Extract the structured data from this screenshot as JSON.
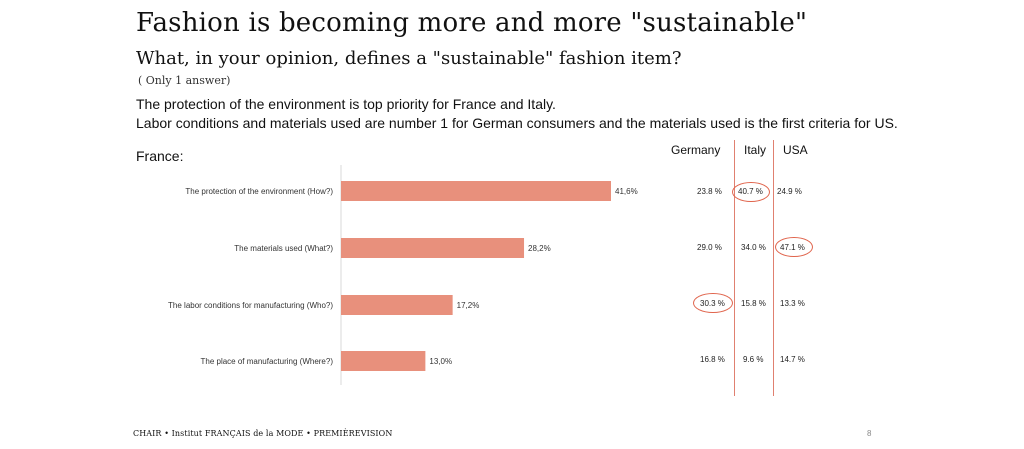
{
  "header": {
    "title": "Fashion is becoming more and more \"sustainable\"",
    "subtitle": "What, in your opinion, defines a \"sustainable\" fashion item?",
    "note": "( Only 1 answer)",
    "insight_line1": "The protection of the environment is top priority for France and Italy.",
    "insight_line2": "Labor conditions and materials used are number 1 for German consumers and the materials used is the first criteria for US."
  },
  "chart_data": {
    "type": "bar",
    "orientation": "horizontal",
    "title": "France:",
    "categories": [
      "The protection of the environment (How?)",
      "The materials used (What?)",
      "The labor conditions for manufacturing (Who?)",
      "The place of manufacturing (Where?)"
    ],
    "values": [
      41.6,
      28.2,
      17.2,
      13.0
    ],
    "value_labels": [
      "41,6%",
      "28,2%",
      "17,2%",
      "13,0%"
    ],
    "bar_color": "#e8907c",
    "xlim": [
      0,
      50
    ]
  },
  "comparison": {
    "headers": [
      "Germany",
      "Italy",
      "USA"
    ],
    "rows": [
      [
        "23.8 %",
        "40.7 %",
        "24.9 %"
      ],
      [
        "29.0 %",
        "34.0 %",
        "47.1 %"
      ],
      [
        "30.3 %",
        "15.8 %",
        "13.3 %"
      ],
      [
        "16.8 %",
        "9.6 %",
        "14.7 %"
      ]
    ],
    "highlight_color": "#e0644c"
  },
  "footer": {
    "text": "CHAIR • Institut FRANÇAIS de la MODE • PREMIÈREVISION",
    "page_number": "8"
  }
}
